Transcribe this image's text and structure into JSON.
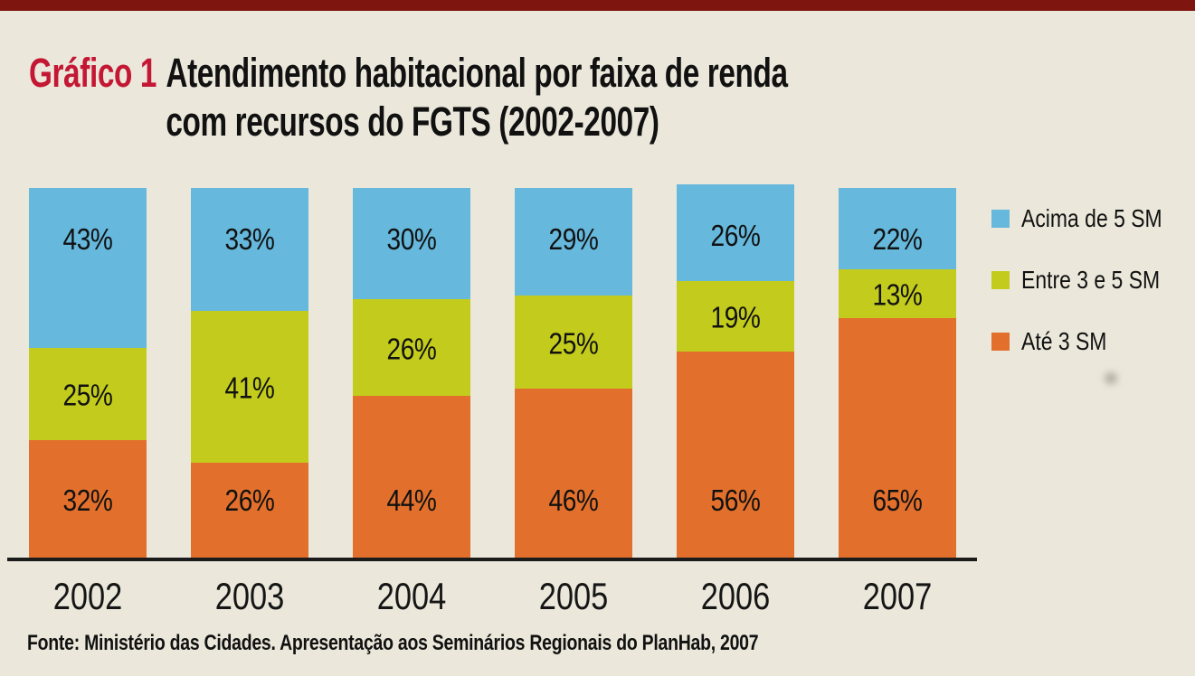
{
  "window": {
    "background": "#EBE8DB",
    "top_strip_color": "#7E150F"
  },
  "title": {
    "label": "Gráfico 1",
    "label_color": "#C41734",
    "line1": "Atendimento habitacional por faixa de renda",
    "line2": "com recursos do FGTS (2002-2007)"
  },
  "legend": {
    "items": [
      {
        "label": "Acima de 5 SM",
        "color": "#66B8DC"
      },
      {
        "label": "Entre 3 e 5 SM",
        "color": "#C3CC1C"
      },
      {
        "label": "Até 3 SM",
        "color": "#E2702C"
      }
    ]
  },
  "footer": {
    "source": "Fonte: Ministério das Cidades. Apresentação aos Seminários Regionais do PlanHab, 2007"
  },
  "chart_data": {
    "type": "bar",
    "stacked": true,
    "percent": true,
    "title": "Gráfico 1 — Atendimento habitacional por faixa de renda com recursos do FGTS (2002-2007)",
    "xlabel": "",
    "ylabel": "",
    "ylim": [
      0,
      100
    ],
    "grid": false,
    "legend_position": "right",
    "value_suffix": "%",
    "categories": [
      "2002",
      "2003",
      "2004",
      "2005",
      "2006",
      "2007"
    ],
    "series": [
      {
        "name": "Até 3 SM",
        "color": "#E2702C",
        "values": [
          32,
          26,
          44,
          46,
          56,
          65
        ]
      },
      {
        "name": "Entre 3 e 5 SM",
        "color": "#C3CC1C",
        "values": [
          25,
          41,
          26,
          25,
          19,
          13
        ]
      },
      {
        "name": "Acima de 5 SM",
        "color": "#66B8DC",
        "values": [
          43,
          33,
          30,
          29,
          26,
          22
        ]
      }
    ]
  }
}
